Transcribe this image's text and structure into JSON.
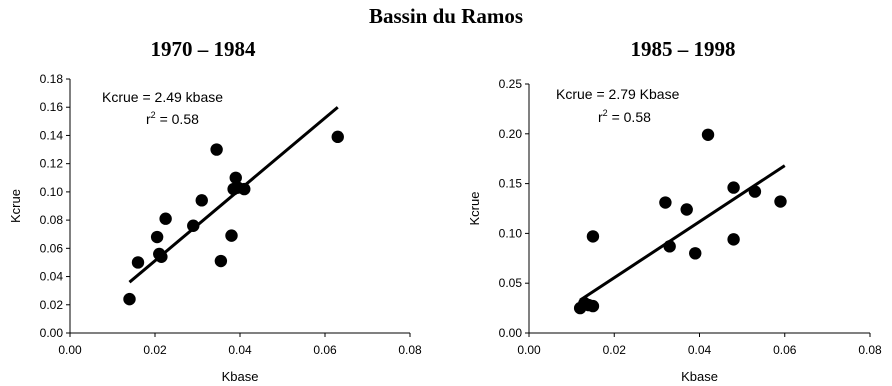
{
  "title": "Bassin du Ramos",
  "chart_data": [
    {
      "type": "scatter",
      "title": "1970 – 1984",
      "xlabel": "Kbase",
      "ylabel": "Kcrue",
      "xlim": [
        0,
        0.08
      ],
      "ylim": [
        0,
        0.18
      ],
      "x_ticks": [
        "0.00",
        "0.02",
        "0.04",
        "0.06",
        "0.08"
      ],
      "y_ticks": [
        "0.00",
        "0.02",
        "0.04",
        "0.06",
        "0.08",
        "0.10",
        "0.12",
        "0.14",
        "0.16",
        "0.18"
      ],
      "annotation_equation": "Kcrue = 2.49 kbase",
      "annotation_r2_label": "r",
      "annotation_r2_exp": "2",
      "annotation_r2_value": " = 0.58",
      "trendline": {
        "x": [
          0.014,
          0.063
        ],
        "y": [
          0.036,
          0.16
        ]
      },
      "x": [
        0.014,
        0.016,
        0.0205,
        0.021,
        0.0215,
        0.0225,
        0.029,
        0.031,
        0.0345,
        0.0355,
        0.038,
        0.0385,
        0.039,
        0.0395,
        0.041,
        0.063
      ],
      "y": [
        0.024,
        0.05,
        0.068,
        0.056,
        0.054,
        0.081,
        0.076,
        0.094,
        0.13,
        0.051,
        0.069,
        0.102,
        0.11,
        0.103,
        0.102,
        0.139
      ]
    },
    {
      "type": "scatter",
      "title": "1985 – 1998",
      "xlabel": "Kbase",
      "ylabel": "Kcrue",
      "xlim": [
        0,
        0.08
      ],
      "ylim": [
        0,
        0.25
      ],
      "x_ticks": [
        "0.00",
        "0.02",
        "0.04",
        "0.06",
        "0.08"
      ],
      "y_ticks": [
        "0.00",
        "0.05",
        "0.10",
        "0.15",
        "0.20",
        "0.25"
      ],
      "annotation_equation": "Kcrue = 2.79 Kbase",
      "annotation_r2_label": "r",
      "annotation_r2_exp": "2",
      "annotation_r2_value": " = 0.58",
      "trendline": {
        "x": [
          0.012,
          0.06
        ],
        "y": [
          0.033,
          0.168
        ]
      },
      "x": [
        0.012,
        0.013,
        0.014,
        0.015,
        0.015,
        0.032,
        0.033,
        0.037,
        0.039,
        0.042,
        0.048,
        0.048,
        0.053,
        0.059
      ],
      "y": [
        0.025,
        0.03,
        0.028,
        0.027,
        0.097,
        0.131,
        0.087,
        0.124,
        0.08,
        0.199,
        0.094,
        0.146,
        0.142,
        0.132
      ]
    }
  ]
}
